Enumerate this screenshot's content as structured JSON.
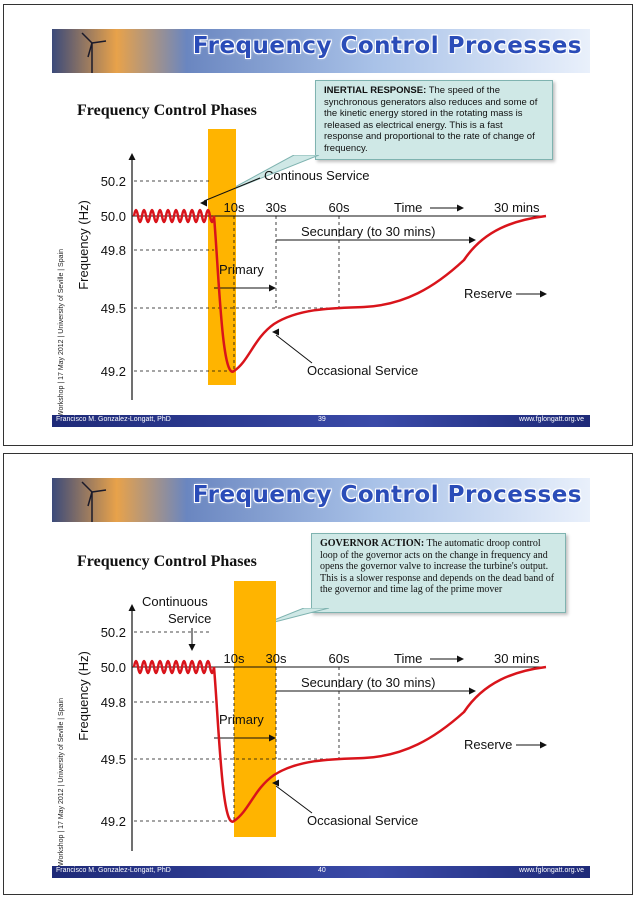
{
  "slides": [
    {
      "banner_title": "Frequency Control Processes",
      "phase_title": "Frequency Control Phases",
      "callout_lead": "INERTIAL RESPONSE:",
      "callout_text": " The speed of the synchronous generators also reduces and some of the kinetic energy stored in the rotating mass is released as electrical energy. This is a fast response and proportional to the rate of change of frequency.",
      "side_label": "Workshop | 17 May 2012 | University of Seville | Spain",
      "footer_author": "Francisco M. Gonzalez-Longatt, PhD",
      "footer_page": "39",
      "footer_url": "www.fglongatt.org.ve",
      "chart_labels": {
        "ylabel": "Frequency (Hz)",
        "yticks": [
          "50.2",
          "50.0",
          "49.8",
          "49.5",
          "49.2"
        ],
        "xticks": [
          "10s",
          "30s",
          "60s"
        ],
        "time_label": "Time",
        "end_label": "30 mins",
        "secundary": "Secundary (to 30 mins)",
        "primary": "Primary",
        "reserve": "Reserve",
        "occasional": "Occasional Service",
        "service_label": "Continous Service",
        "service_label2": ""
      }
    },
    {
      "banner_title": "Frequency Control Processes",
      "phase_title": "Frequency Control Phases",
      "callout_lead": "GOVERNOR ACTION:",
      "callout_text": " The automatic droop control loop of the governor acts on the change in frequency and opens the governor valve to increase the turbine's output.\nThis is a slower response and depends on the dead band of the governor and time lag of the prime mover",
      "side_label": "Workshop | 17 May 2012 | University of Seville | Spain",
      "footer_author": "Francisco M. Gonzalez-Longatt, PhD",
      "footer_page": "40",
      "footer_url": "www.fglongatt.org.ve",
      "chart_labels": {
        "ylabel": "Frequency (Hz)",
        "yticks": [
          "50.2",
          "50.0",
          "49.8",
          "49.5",
          "49.2"
        ],
        "xticks": [
          "10s",
          "30s",
          "60s"
        ],
        "time_label": "Time",
        "end_label": "30 mins",
        "secundary": "Secundary (to 30 mins)",
        "primary": "Primary",
        "reserve": "Reserve",
        "occasional": "Occasional Service",
        "service_label": "Continuous",
        "service_label2": "Service"
      }
    }
  ],
  "colors": {
    "curve": "#d9141b",
    "highlight": "#ffb400",
    "banner_text": "#2a4cb8",
    "footer": "#1e2a78",
    "callout": "#cfe8e6"
  }
}
